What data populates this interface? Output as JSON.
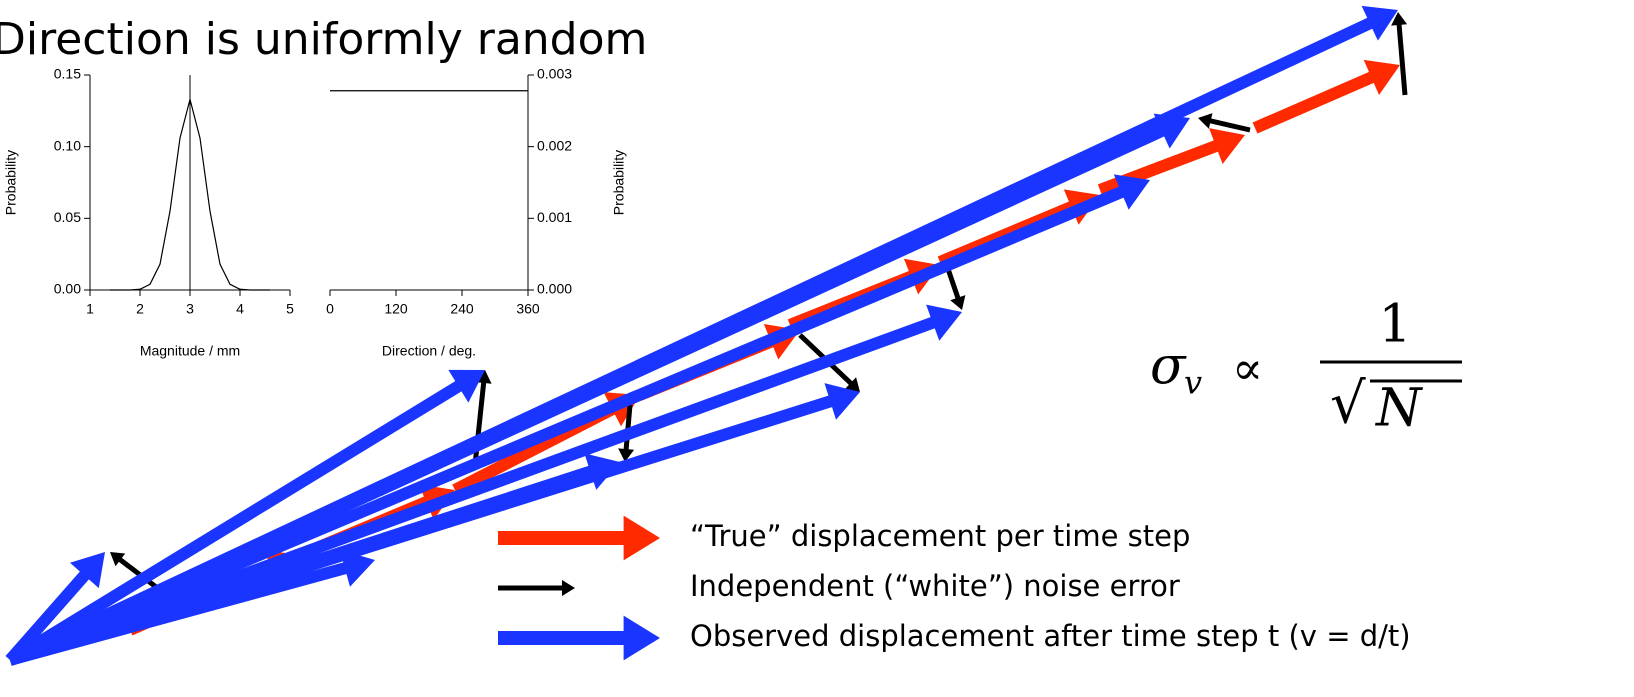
{
  "title": "Direction is uniformly random",
  "chart_data": [
    {
      "type": "line",
      "xlabel": "Magnitude / mm",
      "ylabel": "Probability",
      "x": [
        1.4,
        1.8,
        2.0,
        2.2,
        2.4,
        2.6,
        2.8,
        3.0,
        3.2,
        3.4,
        3.6,
        3.8,
        4.0,
        4.2,
        4.6
      ],
      "values": [
        0,
        0,
        0.0005,
        0.004,
        0.018,
        0.055,
        0.106,
        0.133,
        0.106,
        0.055,
        0.018,
        0.004,
        0.0005,
        0,
        0
      ],
      "color": "#000000",
      "xlim": [
        1,
        5
      ],
      "xticks": [
        1,
        2,
        3,
        4,
        5
      ],
      "ylim": [
        0,
        0.15
      ],
      "yticks": [
        {
          "value": 0,
          "label": "0.00"
        },
        0.05,
        {
          "value": 0.1,
          "label": "0.10"
        },
        0.15
      ],
      "yaxis": "left",
      "vline": 3
    },
    {
      "type": "line",
      "xlabel": "Direction / deg.",
      "ylabel": "Probability",
      "x": [
        0,
        360
      ],
      "values": [
        0.00278,
        0.00278
      ],
      "color": "#000000",
      "xlim": [
        0,
        360
      ],
      "xticks": [
        0,
        120,
        240,
        360
      ],
      "ylim": [
        0,
        0.003
      ],
      "yticks": [
        {
          "value": 0,
          "label": "0.000"
        },
        0.001,
        0.002,
        0.003
      ],
      "yaxis": "right"
    }
  ],
  "formula": {
    "lhs": "σ",
    "sub": "v",
    "rel": "∝",
    "num": "1",
    "den": "N",
    "root": "√"
  },
  "legend": [
    {
      "label": "“True” displacement per time step",
      "color": "#ff2a00"
    },
    {
      "label": "Independent (“white”) noise error",
      "color": "#000000"
    },
    {
      "label": "Observed displacement after time step t (v = d/t)",
      "color": "#1a35ff"
    }
  ]
}
